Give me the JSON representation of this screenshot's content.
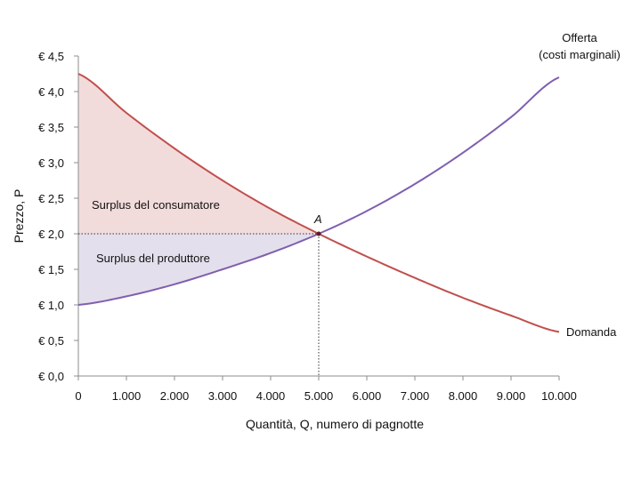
{
  "chart_data": {
    "type": "line",
    "title": "",
    "xlabel": "Quantità, Q, numero di pagnotte",
    "ylabel": "Prezzo, P",
    "xlim": [
      0,
      10000
    ],
    "ylim": [
      0,
      4.5
    ],
    "x_ticks": [
      0,
      1000,
      2000,
      3000,
      4000,
      5000,
      6000,
      7000,
      8000,
      9000,
      10000
    ],
    "x_tick_labels": [
      "0",
      "1.000",
      "2.000",
      "3.000",
      "4.000",
      "5.000",
      "6.000",
      "7.000",
      "8.000",
      "9.000",
      "10.000"
    ],
    "y_ticks": [
      0,
      0.5,
      1,
      1.5,
      2,
      2.5,
      3,
      3.5,
      4,
      4.5
    ],
    "y_tick_labels": [
      "€ 0,0",
      "€ 0,5",
      "€ 1,0",
      "€ 1,5",
      "€ 2,0",
      "€ 2,5",
      "€ 3,0",
      "€ 3,5",
      "€ 4,0",
      "€ 4,5"
    ],
    "series": [
      {
        "name": "Domanda",
        "color": "#c0504d",
        "x": [
          0,
          1000,
          2000,
          3000,
          4000,
          5000,
          6000,
          7000,
          8000,
          9000,
          10000
        ],
        "y": [
          4.25,
          3.7,
          3.2,
          2.75,
          2.35,
          2.0,
          1.68,
          1.38,
          1.1,
          0.85,
          0.62
        ]
      },
      {
        "name": "Offerta",
        "color": "#7f5fb0",
        "x": [
          0,
          1000,
          2000,
          3000,
          4000,
          5000,
          6000,
          7000,
          8000,
          9000,
          10000
        ],
        "y": [
          1.0,
          1.12,
          1.29,
          1.5,
          1.73,
          2.0,
          2.32,
          2.7,
          3.14,
          3.64,
          4.2
        ]
      }
    ],
    "equilibrium": {
      "label": "A",
      "x": 5000,
      "y": 2.0
    },
    "consumer_surplus": {
      "label": "Surplus del consumatore",
      "color": "#f2dcdb"
    },
    "producer_surplus": {
      "label": "Surplus del produttore",
      "color": "#e4dfec"
    },
    "annotations": {
      "supply_label_line1": "Offerta",
      "supply_label_line2": "(costi marginali)",
      "demand_label": "Domanda"
    }
  }
}
